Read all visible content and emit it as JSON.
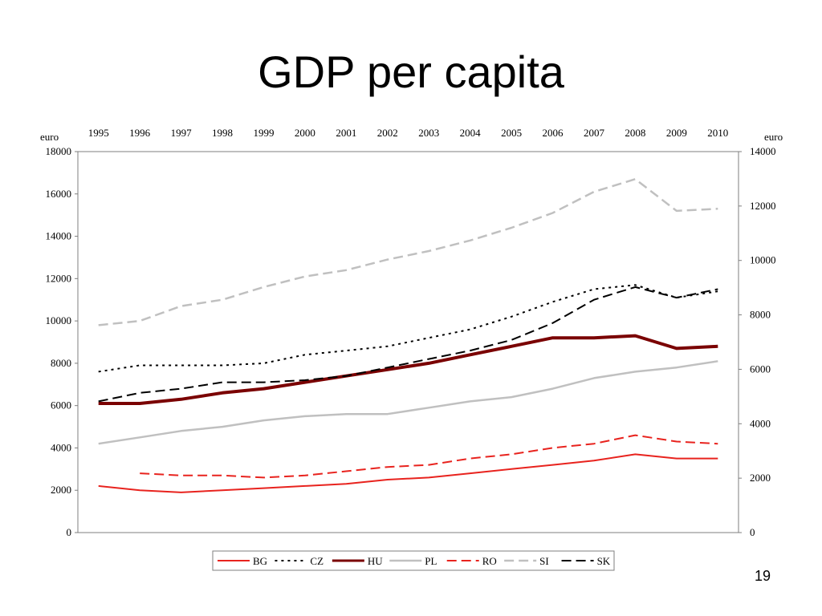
{
  "slide": {
    "title": "GDP per capita",
    "page_number": "19"
  },
  "chart_data": {
    "type": "line",
    "title": "",
    "x": [
      "1995",
      "1996",
      "1997",
      "1998",
      "1999",
      "2000",
      "2001",
      "2002",
      "2003",
      "2004",
      "2005",
      "2006",
      "2007",
      "2008",
      "2009",
      "2010"
    ],
    "y_left_label": "euro",
    "y_right_label": "euro",
    "ylim_left": [
      0,
      18000
    ],
    "ylim_right": [
      0,
      14000
    ],
    "yticks_left": [
      0,
      2000,
      4000,
      6000,
      8000,
      10000,
      12000,
      14000,
      16000,
      18000
    ],
    "yticks_right": [
      0,
      2000,
      4000,
      6000,
      8000,
      10000,
      12000,
      14000
    ],
    "x_axis_position": "top",
    "grid": false,
    "legend_position": "bottom",
    "series": [
      {
        "name": "BG",
        "color": "#e8231e",
        "dash": "solid",
        "width": 2,
        "axis": "left",
        "values": [
          2200,
          2000,
          1900,
          2000,
          2100,
          2200,
          2300,
          2500,
          2600,
          2800,
          3000,
          3200,
          3400,
          3700,
          3500,
          3500
        ]
      },
      {
        "name": "CZ",
        "color": "#000000",
        "dash": "dot",
        "width": 2,
        "axis": "left",
        "values": [
          7600,
          7900,
          7900,
          7900,
          8000,
          8400,
          8600,
          8800,
          9200,
          9600,
          10200,
          10900,
          11500,
          11700,
          11100,
          11400
        ]
      },
      {
        "name": "HU",
        "color": "#7a0000",
        "dash": "solid",
        "width": 4,
        "axis": "left",
        "values": [
          6100,
          6100,
          6300,
          6600,
          6800,
          7100,
          7400,
          7700,
          8000,
          8400,
          8800,
          9200,
          9200,
          9300,
          8700,
          8800
        ]
      },
      {
        "name": "PL",
        "color": "#c0c0c0",
        "dash": "solid",
        "width": 2.5,
        "axis": "left",
        "values": [
          4200,
          4500,
          4800,
          5000,
          5300,
          5500,
          5600,
          5600,
          5900,
          6200,
          6400,
          6800,
          7300,
          7600,
          7800,
          8100
        ]
      },
      {
        "name": "RO",
        "color": "#e8231e",
        "dash": "dash",
        "width": 2,
        "axis": "left",
        "values": [
          null,
          2800,
          2700,
          2700,
          2600,
          2700,
          2900,
          3100,
          3200,
          3500,
          3700,
          4000,
          4200,
          4600,
          4300,
          4200
        ]
      },
      {
        "name": "SI",
        "color": "#c0c0c0",
        "dash": "dash",
        "width": 2.5,
        "axis": "left",
        "values": [
          9800,
          10000,
          10700,
          11000,
          11600,
          12100,
          12400,
          12900,
          13300,
          13800,
          14400,
          15100,
          16100,
          16700,
          15200,
          15300
        ]
      },
      {
        "name": "SK",
        "color": "#000000",
        "dash": "dash",
        "width": 2,
        "axis": "left",
        "values": [
          6200,
          6600,
          6800,
          7100,
          7100,
          7200,
          7400,
          7800,
          8200,
          8600,
          9100,
          9900,
          11000,
          11600,
          11100,
          11500
        ]
      }
    ]
  }
}
